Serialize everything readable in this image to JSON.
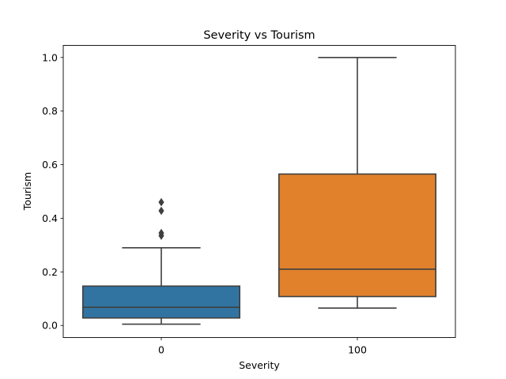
{
  "chart_data": {
    "type": "box",
    "title": "Severity vs Tourism",
    "xlabel": "Severity",
    "ylabel": "Tourism",
    "ylim": [
      -0.045,
      1.045
    ],
    "yticks": [
      "0.0",
      "0.2",
      "0.4",
      "0.6",
      "0.8",
      "1.0"
    ],
    "categories": [
      "0",
      "100"
    ],
    "grid": false,
    "legend": "none",
    "boxes": [
      {
        "category": "0",
        "color": "#3274a1",
        "whisker_low": 0.005,
        "q1": 0.028,
        "median": 0.068,
        "q3": 0.147,
        "whisker_high": 0.29,
        "outliers": [
          0.335,
          0.345,
          0.428,
          0.46
        ]
      },
      {
        "category": "100",
        "color": "#e1812c",
        "whisker_low": 0.065,
        "q1": 0.108,
        "median": 0.21,
        "q3": 0.565,
        "whisker_high": 1.0,
        "outliers": []
      }
    ]
  }
}
